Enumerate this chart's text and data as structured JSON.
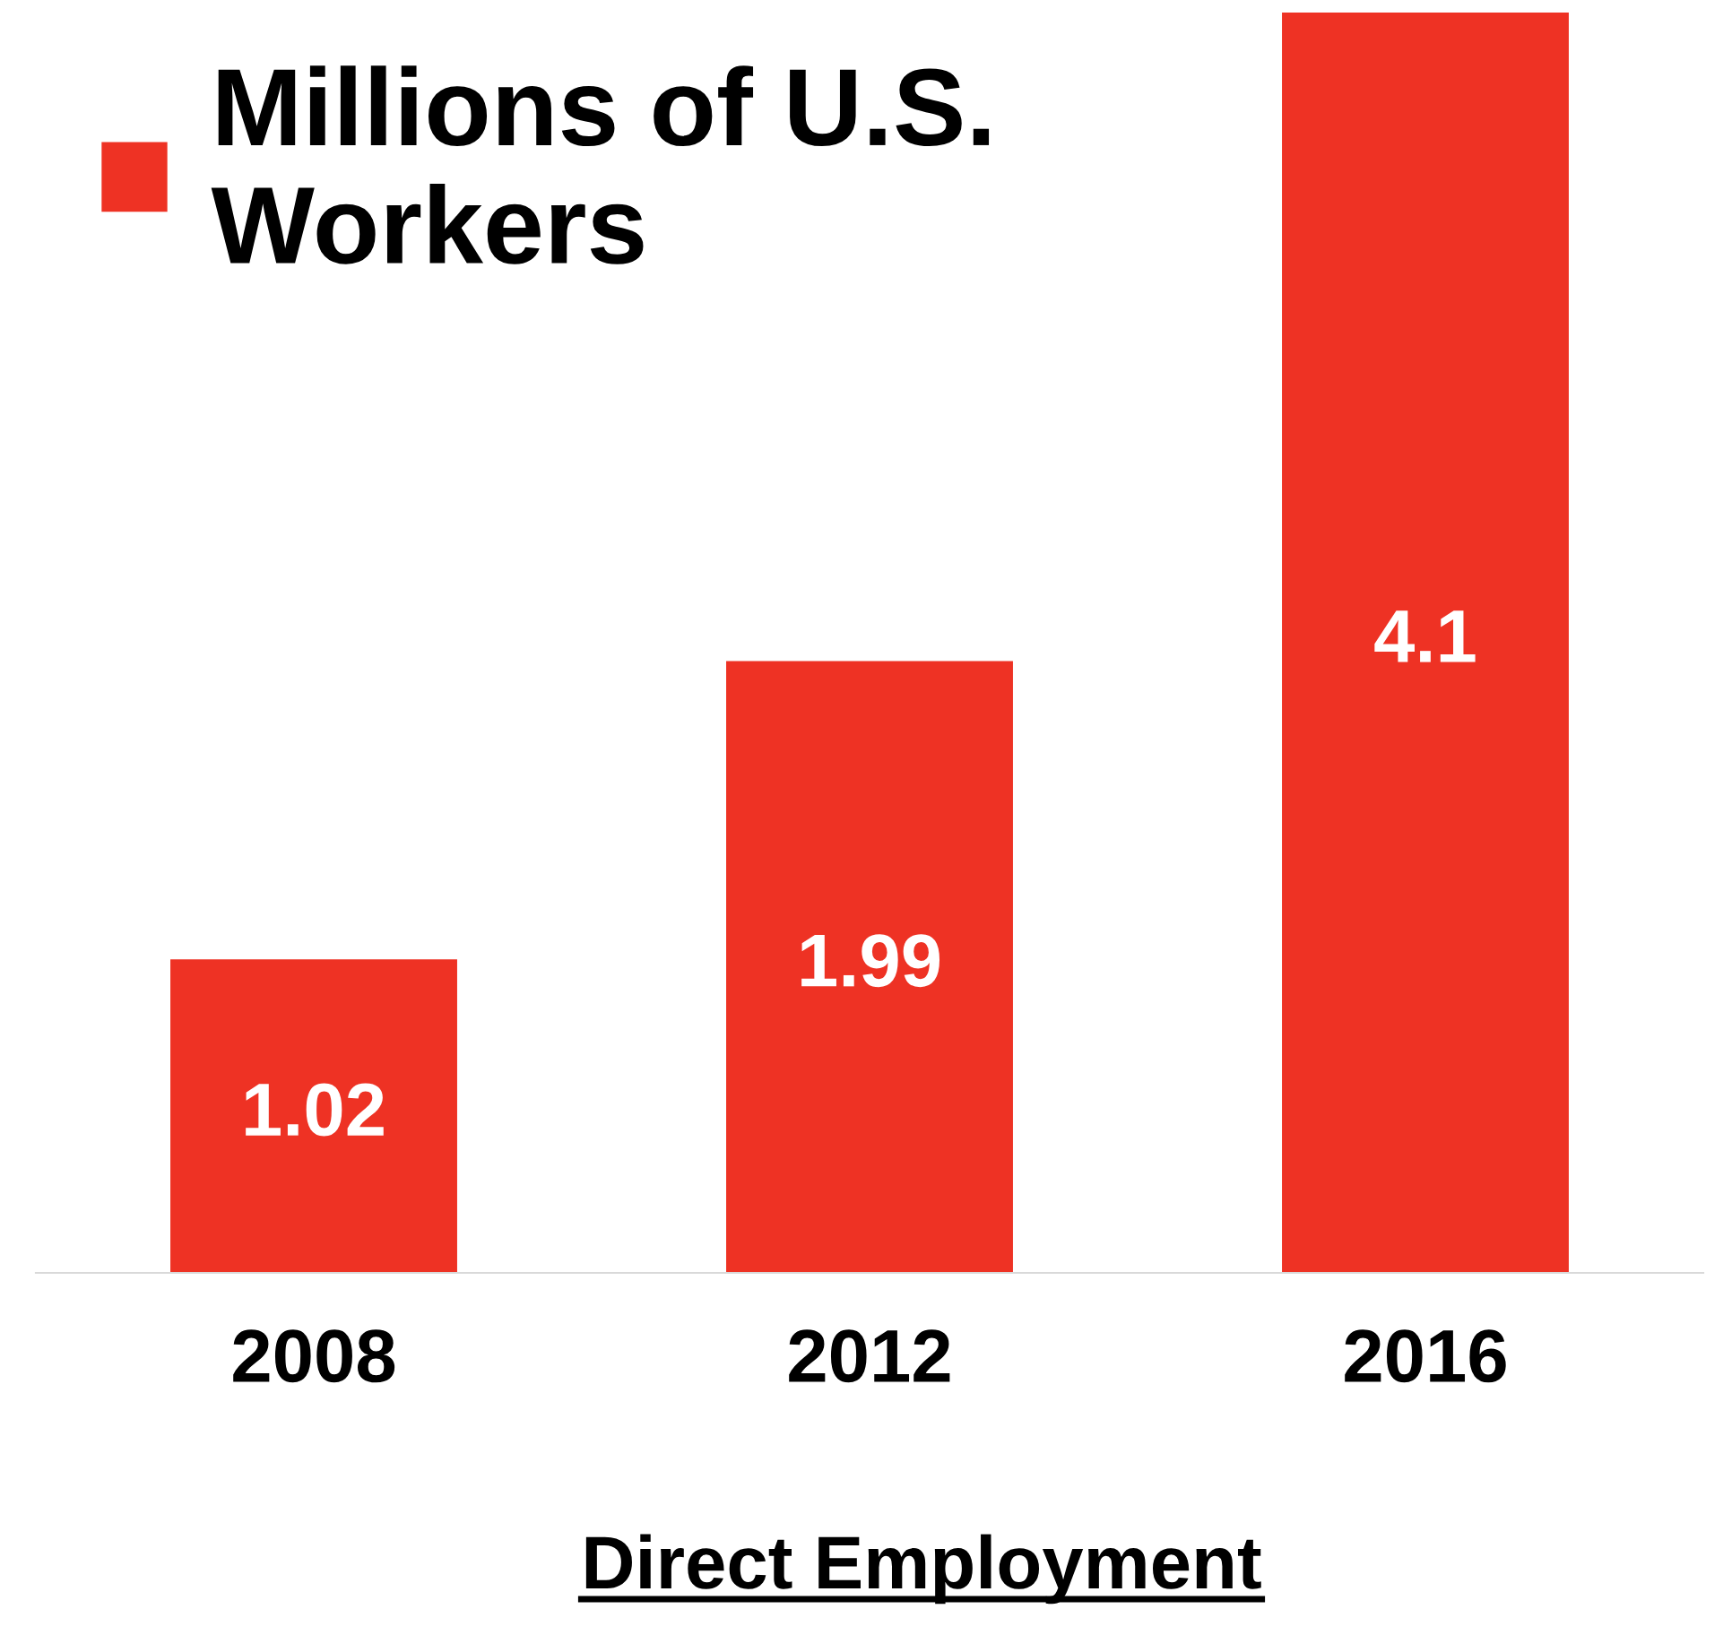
{
  "chart_data": {
    "type": "bar",
    "xlabel": "Direct Employment",
    "categories": [
      "2008",
      "2012",
      "2016"
    ],
    "series": [
      {
        "name": "Millions of U.S. Workers",
        "color": "#ee3224",
        "values": [
          1.02,
          1.99,
          4.1
        ]
      }
    ],
    "data_labels": true,
    "legend": "top left",
    "grid": false,
    "tick_labels": "x"
  }
}
